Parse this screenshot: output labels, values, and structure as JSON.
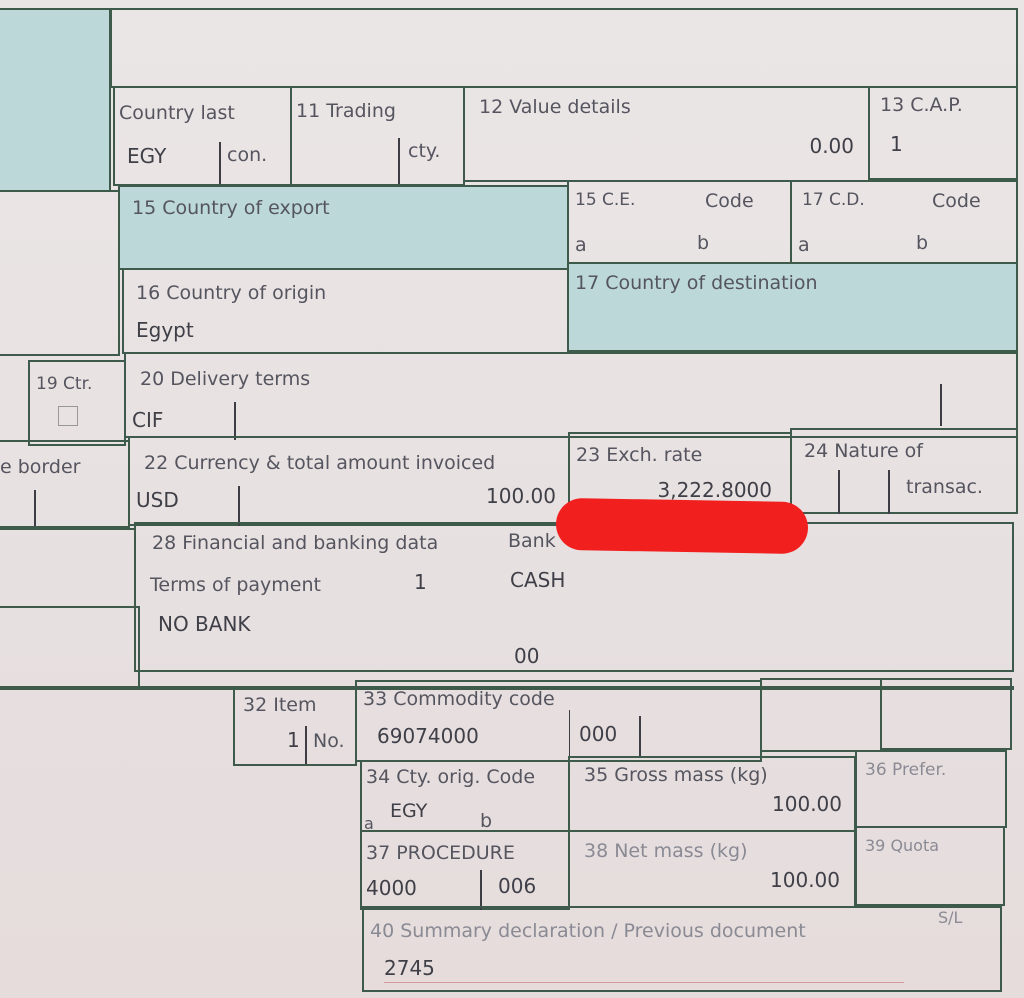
{
  "box_country_last": {
    "label": "Country last",
    "value": "EGY",
    "suffix": "con."
  },
  "box_11": {
    "label": "11 Trading",
    "suffix": "cty."
  },
  "box_12": {
    "label": "12 Value details",
    "value": "0.00"
  },
  "box_13": {
    "label": "13 C.A.P.",
    "value": "1"
  },
  "box_15": {
    "label": "15 Country of export"
  },
  "box_15ce": {
    "label": "15 C.E.",
    "code": "Code",
    "a": "a",
    "b": "b"
  },
  "box_17cd": {
    "label": "17 C.D.",
    "code": "Code",
    "a": "a",
    "b": "b"
  },
  "box_16": {
    "label": "16 Country of origin",
    "value": "Egypt"
  },
  "box_17": {
    "label": "17 Country of destination"
  },
  "box_19": {
    "label": "19 Ctr."
  },
  "box_20": {
    "label": "20 Delivery terms",
    "value": "CIF"
  },
  "box_border": {
    "label": "e border"
  },
  "box_22": {
    "label": "22 Currency & total amount invoiced",
    "currency": "USD",
    "amount": "100.00"
  },
  "box_23": {
    "label": "23 Exch. rate",
    "value": "3,222.8000"
  },
  "box_24": {
    "label": "24 Nature of",
    "suffix": "transac."
  },
  "box_28": {
    "label": "28 Financial and banking data",
    "bank_label": "Bank",
    "terms_label": "Terms of payment",
    "terms_value": "1",
    "payment": "CASH",
    "bank": "NO BANK",
    "code": "00"
  },
  "box_32": {
    "label": "32 Item",
    "value": "1",
    "suffix": "No."
  },
  "box_33": {
    "label": "33 Commodity code",
    "value": "69074000",
    "sub": "000"
  },
  "box_34": {
    "label": "34 Cty. orig. Code",
    "a": "a",
    "value": "EGY",
    "b": "b"
  },
  "box_35": {
    "label": "35 Gross mass (kg)",
    "value": "100.00"
  },
  "box_36": {
    "label": "36 Prefer."
  },
  "box_37": {
    "label": "37 PROCEDURE",
    "value": "4000",
    "sub": "006"
  },
  "box_38": {
    "label": "38 Net mass (kg)",
    "value": "100.00"
  },
  "box_39": {
    "label": "39 Quota"
  },
  "box_40": {
    "label": "40 Summary declaration / Previous document",
    "sl": "S/L",
    "value": "2745"
  },
  "colors": {
    "line": "#3d5a4b",
    "teal": "#bcd8d8",
    "redaction": "#f21f1f"
  }
}
